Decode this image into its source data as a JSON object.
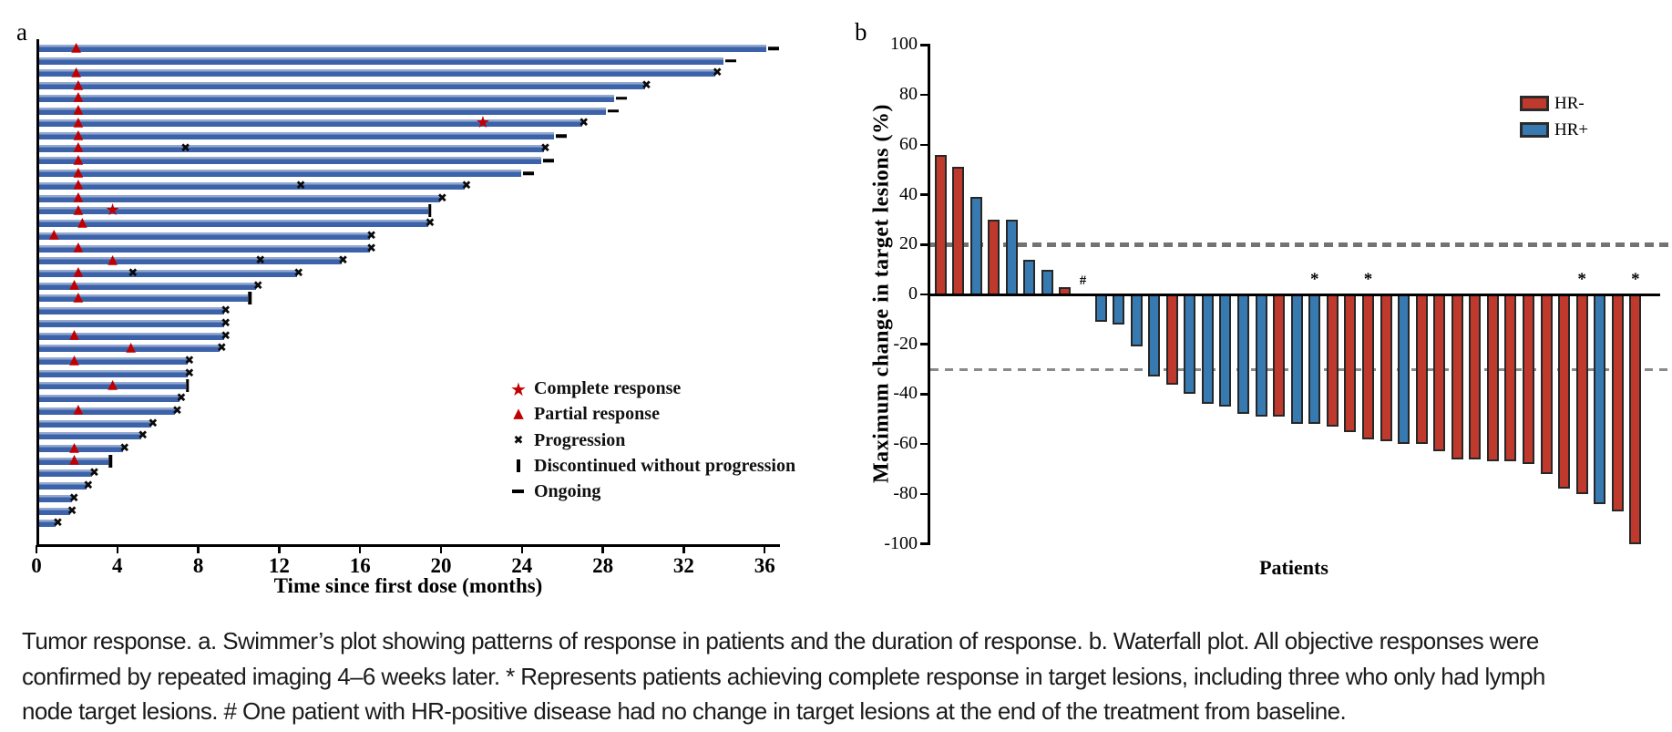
{
  "figure": {
    "caption_lines": [
      "Tumor response. a. Swimmer’s plot showing patterns of response in patients and the duration of response. b. Waterfall plot. All objective responses were",
      "confirmed by repeated imaging 4–6 weeks later. * Represents patients achieving complete response in target lesions, including three who only had lymph",
      "node target lesions. # One patient with HR-positive disease had no change in target lesions at the end of the treatment from baseline."
    ]
  },
  "chart_data": [
    {
      "type": "swimmer",
      "panel_label": "a",
      "xlabel": "Time since first dose (months)",
      "x_ticks": [
        0,
        4,
        8,
        12,
        16,
        20,
        24,
        28,
        32,
        36
      ],
      "xlim": [
        0,
        36.7
      ],
      "bar_color": "#3c63a9",
      "marker_color_response": "#c00000",
      "marker_color_event": "#0a0a0a",
      "legend": [
        {
          "marker": "star",
          "label": "Complete response"
        },
        {
          "marker": "triangle",
          "label": "Partial response"
        },
        {
          "marker": "x",
          "label": "Progression"
        },
        {
          "marker": "vbar",
          "label": "Discontinued without progression"
        },
        {
          "marker": "dash",
          "label": "Ongoing"
        }
      ],
      "patients": [
        {
          "duration": 36.0,
          "end": "ongoing",
          "markers": [
            {
              "type": "triangle",
              "month": 1.9
            }
          ]
        },
        {
          "duration": 33.9,
          "end": "ongoing",
          "markers": []
        },
        {
          "duration": 33.5,
          "end": "progression",
          "markers": [
            {
              "type": "triangle",
              "month": 1.9
            }
          ]
        },
        {
          "duration": 30.0,
          "end": "progression",
          "markers": [
            {
              "type": "triangle",
              "month": 2.0
            }
          ]
        },
        {
          "duration": 28.5,
          "end": "ongoing",
          "markers": [
            {
              "type": "triangle",
              "month": 2.0
            }
          ]
        },
        {
          "duration": 28.1,
          "end": "ongoing",
          "markers": [
            {
              "type": "triangle",
              "month": 2.0
            }
          ]
        },
        {
          "duration": 26.9,
          "end": "progression",
          "markers": [
            {
              "type": "triangle",
              "month": 2.0
            },
            {
              "type": "star",
              "month": 22.0
            }
          ]
        },
        {
          "duration": 25.5,
          "end": "ongoing",
          "markers": [
            {
              "type": "triangle",
              "month": 2.0
            }
          ]
        },
        {
          "duration": 25.0,
          "end": "progression",
          "markers": [
            {
              "type": "triangle",
              "month": 2.0
            },
            {
              "type": "x",
              "month": 7.3
            }
          ]
        },
        {
          "duration": 24.9,
          "end": "ongoing",
          "markers": [
            {
              "type": "triangle",
              "month": 2.0
            }
          ]
        },
        {
          "duration": 23.9,
          "end": "ongoing",
          "markers": [
            {
              "type": "triangle",
              "month": 2.0
            }
          ]
        },
        {
          "duration": 21.1,
          "end": "progression",
          "markers": [
            {
              "type": "triangle",
              "month": 2.0
            },
            {
              "type": "x",
              "month": 13.0
            }
          ]
        },
        {
          "duration": 19.9,
          "end": "progression",
          "markers": [
            {
              "type": "triangle",
              "month": 2.0
            }
          ]
        },
        {
          "duration": 19.3,
          "end": "discontinued",
          "markers": [
            {
              "type": "triangle",
              "month": 2.0
            },
            {
              "type": "star",
              "month": 3.7
            }
          ]
        },
        {
          "duration": 19.3,
          "end": "progression",
          "markers": [
            {
              "type": "triangle",
              "month": 2.2
            }
          ]
        },
        {
          "duration": 16.4,
          "end": "progression",
          "markers": [
            {
              "type": "triangle",
              "month": 0.8
            }
          ]
        },
        {
          "duration": 16.4,
          "end": "progression",
          "markers": [
            {
              "type": "triangle",
              "month": 2.0
            }
          ]
        },
        {
          "duration": 15.0,
          "end": "progression",
          "markers": [
            {
              "type": "triangle",
              "month": 3.7
            },
            {
              "type": "x",
              "month": 11.0
            }
          ]
        },
        {
          "duration": 12.8,
          "end": "progression",
          "markers": [
            {
              "type": "triangle",
              "month": 2.0
            },
            {
              "type": "x",
              "month": 4.7
            }
          ]
        },
        {
          "duration": 10.8,
          "end": "progression",
          "markers": [
            {
              "type": "triangle",
              "month": 1.8
            }
          ]
        },
        {
          "duration": 10.4,
          "end": "discontinued",
          "markers": [
            {
              "type": "triangle",
              "month": 2.0
            }
          ]
        },
        {
          "duration": 9.2,
          "end": "progression",
          "markers": []
        },
        {
          "duration": 9.2,
          "end": "progression",
          "markers": []
        },
        {
          "duration": 9.2,
          "end": "progression",
          "markers": [
            {
              "type": "triangle",
              "month": 1.8
            }
          ]
        },
        {
          "duration": 9.0,
          "end": "progression",
          "markers": [
            {
              "type": "triangle",
              "month": 4.6
            }
          ]
        },
        {
          "duration": 7.4,
          "end": "progression",
          "markers": [
            {
              "type": "triangle",
              "month": 1.8
            }
          ]
        },
        {
          "duration": 7.4,
          "end": "progression",
          "markers": []
        },
        {
          "duration": 7.3,
          "end": "discontinued",
          "markers": [
            {
              "type": "triangle",
              "month": 3.7
            }
          ]
        },
        {
          "duration": 7.0,
          "end": "progression",
          "markers": []
        },
        {
          "duration": 6.8,
          "end": "progression",
          "markers": [
            {
              "type": "triangle",
              "month": 2.0
            }
          ]
        },
        {
          "duration": 5.6,
          "end": "progression",
          "markers": []
        },
        {
          "duration": 5.1,
          "end": "progression",
          "markers": []
        },
        {
          "duration": 4.2,
          "end": "progression",
          "markers": [
            {
              "type": "triangle",
              "month": 1.8
            }
          ]
        },
        {
          "duration": 3.5,
          "end": "discontinued",
          "markers": [
            {
              "type": "triangle",
              "month": 1.8
            }
          ]
        },
        {
          "duration": 2.7,
          "end": "progression",
          "markers": []
        },
        {
          "duration": 2.4,
          "end": "progression",
          "markers": []
        },
        {
          "duration": 1.7,
          "end": "progression",
          "markers": []
        },
        {
          "duration": 1.6,
          "end": "progression",
          "markers": []
        },
        {
          "duration": 0.9,
          "end": "progression",
          "markers": []
        }
      ]
    },
    {
      "type": "waterfall",
      "panel_label": "b",
      "ylabel": "Maximum change in target lesions (%)",
      "xlabel": "Patients",
      "y_ticks": [
        100,
        80,
        60,
        40,
        20,
        0,
        -20,
        -40,
        -60,
        -80,
        -100
      ],
      "ylim": [
        -100,
        100
      ],
      "ref_lines": [
        20,
        -30
      ],
      "colors": {
        "HR-": "#bf392c",
        "HR+": "#3779b1",
        "border": "#272727"
      },
      "legend": [
        {
          "label": "HR-",
          "group": "HR-",
          "color": "#bf392c"
        },
        {
          "label": "HR+",
          "group": "HR+",
          "color": "#3779b1"
        }
      ],
      "bars": [
        {
          "value": 56,
          "group": "HR-"
        },
        {
          "value": 51,
          "group": "HR-"
        },
        {
          "value": 39,
          "group": "HR+"
        },
        {
          "value": 30,
          "group": "HR-"
        },
        {
          "value": 30,
          "group": "HR+"
        },
        {
          "value": 14,
          "group": "HR+"
        },
        {
          "value": 10,
          "group": "HR+"
        },
        {
          "value": 3,
          "group": "HR-"
        },
        {
          "value": 0,
          "group": "HR+",
          "annotation": "#"
        },
        {
          "value": -11,
          "group": "HR+"
        },
        {
          "value": -12,
          "group": "HR+"
        },
        {
          "value": -21,
          "group": "HR+"
        },
        {
          "value": -33,
          "group": "HR+"
        },
        {
          "value": -36,
          "group": "HR-"
        },
        {
          "value": -40,
          "group": "HR+"
        },
        {
          "value": -44,
          "group": "HR+"
        },
        {
          "value": -45,
          "group": "HR+"
        },
        {
          "value": -48,
          "group": "HR+"
        },
        {
          "value": -49,
          "group": "HR+"
        },
        {
          "value": -49,
          "group": "HR-"
        },
        {
          "value": -52,
          "group": "HR+"
        },
        {
          "value": -52,
          "group": "HR+",
          "annotation": "*"
        },
        {
          "value": -53,
          "group": "HR-"
        },
        {
          "value": -55,
          "group": "HR-"
        },
        {
          "value": -58,
          "group": "HR-",
          "annotation": "*"
        },
        {
          "value": -59,
          "group": "HR-"
        },
        {
          "value": -60,
          "group": "HR+"
        },
        {
          "value": -60,
          "group": "HR-"
        },
        {
          "value": -63,
          "group": "HR-"
        },
        {
          "value": -66,
          "group": "HR-"
        },
        {
          "value": -66,
          "group": "HR-"
        },
        {
          "value": -67,
          "group": "HR-"
        },
        {
          "value": -67,
          "group": "HR-"
        },
        {
          "value": -68,
          "group": "HR-"
        },
        {
          "value": -72,
          "group": "HR-"
        },
        {
          "value": -78,
          "group": "HR-"
        },
        {
          "value": -80,
          "group": "HR-",
          "annotation": "*"
        },
        {
          "value": -84,
          "group": "HR+"
        },
        {
          "value": -87,
          "group": "HR-"
        },
        {
          "value": -100,
          "group": "HR-",
          "annotation": "*"
        }
      ]
    }
  ]
}
